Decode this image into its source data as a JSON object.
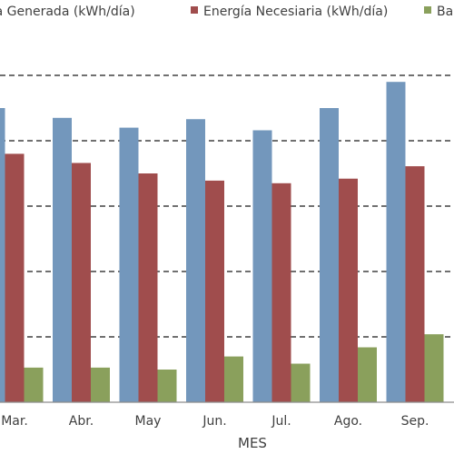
{
  "chart_data": {
    "type": "bar",
    "title": "",
    "xlabel": "MES",
    "ylabel": "",
    "ylim": [
      0,
      50
    ],
    "grid": true,
    "legend_position": "top",
    "categories": [
      "Mar.",
      "Abr.",
      "May",
      "Jun.",
      "Jul.",
      "Ago.",
      "Sep."
    ],
    "series": [
      {
        "name": "Energía Generada (kWh/día)",
        "color": "#7397bc",
        "values": [
          45.0,
          43.5,
          42.0,
          43.3,
          41.6,
          45.0,
          49.0
        ]
      },
      {
        "name": "Energía Necesiaria (kWh/día)",
        "color": "#a04d4d",
        "values": [
          38.0,
          36.6,
          35.0,
          33.9,
          33.5,
          34.2,
          36.1
        ]
      },
      {
        "name": "Ba",
        "color": "#8aa05c",
        "values": [
          5.3,
          5.3,
          5.0,
          7.0,
          5.9,
          8.4,
          10.4
        ]
      }
    ]
  }
}
